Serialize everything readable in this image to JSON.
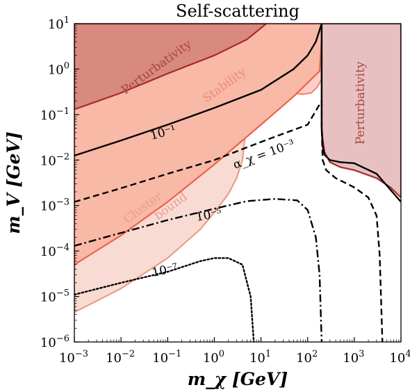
{
  "chart_data": {
    "type": "area",
    "title": "Self-scattering",
    "xlabel": "m_χ [GeV]",
    "ylabel": "m_V [GeV]",
    "xscale": "log",
    "yscale": "log",
    "xlim": [
      0.001,
      10000
    ],
    "ylim": [
      1e-06,
      10
    ],
    "x_ticks": [
      {
        "value": 0.001,
        "base": "10",
        "exp": "−3"
      },
      {
        "value": 0.01,
        "base": "10",
        "exp": "−2"
      },
      {
        "value": 0.1,
        "base": "10",
        "exp": "−1"
      },
      {
        "value": 1,
        "base": "10",
        "exp": "0"
      },
      {
        "value": 10,
        "base": "10",
        "exp": "1"
      },
      {
        "value": 100,
        "base": "10",
        "exp": "2"
      },
      {
        "value": 1000,
        "base": "10",
        "exp": "3"
      },
      {
        "value": 10000,
        "base": "10",
        "exp": "4"
      }
    ],
    "y_ticks": [
      {
        "value": 1e-06,
        "base": "10",
        "exp": "−6"
      },
      {
        "value": 1e-05,
        "base": "10",
        "exp": "−5"
      },
      {
        "value": 0.0001,
        "base": "10",
        "exp": "−4"
      },
      {
        "value": 0.001,
        "base": "10",
        "exp": "−3"
      },
      {
        "value": 0.01,
        "base": "10",
        "exp": "−2"
      },
      {
        "value": 0.1,
        "base": "10",
        "exp": "−1"
      },
      {
        "value": 1,
        "base": "10",
        "exp": "0"
      },
      {
        "value": 10,
        "base": "10",
        "exp": "1"
      }
    ],
    "regions": [
      {
        "label": "Cluster bound",
        "fill": "#f8dcd4",
        "edge": "#eb9c87",
        "points": [
          [
            0.001,
            4.5e-06
          ],
          [
            0.01,
            1.5e-05
          ],
          [
            0.1,
            7e-05
          ],
          [
            0.5,
            0.0003
          ],
          [
            1,
            0.0007
          ],
          [
            2,
            0.0018
          ],
          [
            3,
            0.004
          ],
          [
            4,
            0.01
          ],
          [
            4.5,
            0.03
          ],
          [
            5,
            0.1
          ],
          [
            5.5,
            0.5
          ],
          [
            6,
            2
          ],
          [
            6.5,
            10
          ],
          [
            0.001,
            10
          ]
        ]
      },
      {
        "label": "Stability",
        "fill": "#fcd0c8",
        "edge": "#f08a76",
        "points": [
          [
            7,
            10
          ],
          [
            9,
            3
          ],
          [
            11,
            1
          ],
          [
            14,
            0.5
          ],
          [
            20,
            0.35
          ],
          [
            40,
            0.3
          ],
          [
            80,
            0.28
          ],
          [
            120,
            0.3
          ],
          [
            160,
            0.4
          ],
          [
            200,
            0.6
          ],
          [
            210,
            10
          ]
        ]
      },
      {
        "label": "",
        "fill": "#f8b9a7",
        "edge": "#f0614a",
        "points": [
          [
            0.001,
            5e-05
          ],
          [
            0.01,
            0.00022
          ],
          [
            0.1,
            0.0012
          ],
          [
            1,
            0.008
          ],
          [
            10,
            0.06
          ],
          [
            50,
            0.25
          ],
          [
            100,
            0.5
          ],
          [
            150,
            0.75
          ],
          [
            180,
            0.9
          ],
          [
            210,
            10
          ],
          [
            0.001,
            10
          ]
        ]
      },
      {
        "label": "Perturbativity",
        "fill": "#d98a80",
        "edge": "#a52a2a",
        "points": [
          [
            0.001,
            0.13
          ],
          [
            0.01,
            0.3
          ],
          [
            0.1,
            0.8
          ],
          [
            1,
            2
          ],
          [
            5,
            4.5
          ],
          [
            10,
            8
          ],
          [
            13,
            10
          ],
          [
            0.001,
            10
          ]
        ]
      },
      {
        "label": "Perturbativity",
        "fill": "#e7c1c1",
        "edge": "#a52a2a",
        "points": [
          [
            200,
            10
          ],
          [
            200,
            0.05
          ],
          [
            210,
            0.03
          ],
          [
            230,
            0.015
          ],
          [
            300,
            0.009
          ],
          [
            500,
            0.007
          ],
          [
            1000,
            0.006
          ],
          [
            3000,
            0.004
          ],
          [
            6000,
            0.0025
          ],
          [
            10000,
            0.0015
          ],
          [
            10000,
            10
          ]
        ]
      }
    ],
    "series": [
      {
        "name": "10⁻¹",
        "style": "solid",
        "segments": [
          [
            [
              0.001,
              0.0125
            ],
            [
              0.01,
              0.027
            ],
            [
              0.1,
              0.06
            ],
            [
              1,
              0.14
            ],
            [
              10,
              0.35
            ],
            [
              50,
              1
            ],
            [
              100,
              2
            ],
            [
              150,
              4
            ],
            [
              200,
              10
            ]
          ],
          [
            [
              200,
              10
            ],
            [
              200,
              0.05
            ],
            [
              210,
              0.02
            ],
            [
              230,
              0.013
            ],
            [
              300,
              0.01
            ],
            [
              500,
              0.009
            ],
            [
              1000,
              0.0085
            ],
            [
              3000,
              0.005
            ],
            [
              10000,
              0.0012
            ]
          ]
        ]
      },
      {
        "name": "α_χ = 10⁻³",
        "style": "dashed",
        "segments": [
          [
            [
              0.001,
              0.0012
            ],
            [
              0.01,
              0.0024
            ],
            [
              0.1,
              0.005
            ],
            [
              1,
              0.01
            ],
            [
              10,
              0.025
            ],
            [
              100,
              0.06
            ],
            [
              200,
              0.2
            ]
          ],
          [
            [
              200,
              0.2
            ],
            [
              200,
              0.05
            ],
            [
              210,
              0.01
            ],
            [
              250,
              0.006
            ],
            [
              400,
              0.004
            ],
            [
              1000,
              0.0025
            ],
            [
              2000,
              0.0015
            ],
            [
              3000,
              0.0006
            ],
            [
              3500,
              8e-05
            ],
            [
              4000,
              1e-06
            ]
          ]
        ]
      },
      {
        "name": "10⁻⁵",
        "style": "dashdot",
        "segments": [
          [
            [
              0.001,
              0.00013
            ],
            [
              0.01,
              0.00025
            ],
            [
              0.1,
              0.00048
            ],
            [
              1,
              0.00085
            ],
            [
              5,
              0.00125
            ],
            [
              20,
              0.0014
            ],
            [
              60,
              0.0013
            ],
            [
              100,
              0.0008
            ],
            [
              150,
              0.0002
            ],
            [
              180,
              3e-05
            ],
            [
              200,
              1e-06
            ]
          ]
        ]
      },
      {
        "name": "10⁻⁷",
        "style": "dotted",
        "segments": [
          [
            [
              0.001,
              1.1e-05
            ],
            [
              0.01,
              2e-05
            ],
            [
              0.1,
              3.5e-05
            ],
            [
              0.5,
              6e-05
            ],
            [
              1,
              7e-05
            ],
            [
              2,
              7e-05
            ],
            [
              4,
              5e-05
            ],
            [
              6,
              1e-05
            ],
            [
              7,
              1e-06
            ]
          ]
        ]
      }
    ],
    "annotations": [
      {
        "text": "Perturbativity",
        "color": "#a8453e"
      },
      {
        "text": "Stability",
        "color": "#ee8a78"
      },
      {
        "text": "Cluster",
        "color": "#eb9c87"
      },
      {
        "text": "bound",
        "color": "#eb9c87"
      },
      {
        "text": "Perturbativity",
        "color": "#a8453e"
      },
      {
        "text": "10⁻¹",
        "color": "#000000"
      },
      {
        "text": "α_χ = 10⁻³",
        "color": "#000000"
      },
      {
        "text": "10⁻⁵",
        "color": "#000000"
      },
      {
        "text": "10⁻⁷",
        "color": "#000000"
      }
    ]
  }
}
